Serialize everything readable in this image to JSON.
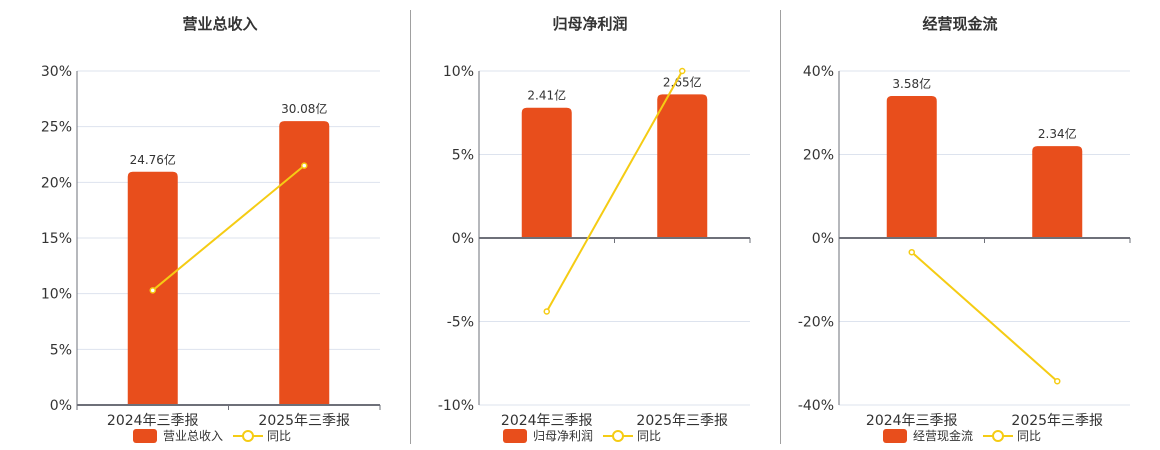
{
  "colors": {
    "bar": "#e84e1c",
    "line": "#f5cc14",
    "grid": "#dde3ee",
    "axis": "#6e7079"
  },
  "legend": {
    "yoy_label": "同比"
  },
  "chart_data": [
    {
      "type": "bar+line",
      "title": "营业总收入",
      "categories": [
        "2024年三季报",
        "2025年三季报"
      ],
      "bar_series": {
        "name": "营业总收入",
        "values": [
          24.76,
          30.08
        ],
        "labels": [
          "24.76亿",
          "30.08亿"
        ],
        "unit": "亿"
      },
      "line_series": {
        "name": "同比",
        "values": [
          10.3,
          21.5
        ],
        "unit": "%"
      },
      "yaxis": {
        "ticks": [
          "30%",
          "25%",
          "20%",
          "15%",
          "10%",
          "5%",
          "0%"
        ],
        "min": 0,
        "max": 30
      },
      "bar_display_pct": [
        20.95,
        25.5
      ],
      "grid": true,
      "legend_position": "bottom"
    },
    {
      "type": "bar+line",
      "title": "归母净利润",
      "categories": [
        "2024年三季报",
        "2025年三季报"
      ],
      "bar_series": {
        "name": "归母净利润",
        "values": [
          2.41,
          2.65
        ],
        "labels": [
          "2.41亿",
          "2.65亿"
        ],
        "unit": "亿"
      },
      "line_series": {
        "name": "同比",
        "values": [
          -4.4,
          10.0
        ],
        "unit": "%"
      },
      "yaxis": {
        "ticks": [
          "10%",
          "5%",
          "0%",
          "-5%",
          "-10%"
        ],
        "min": -10,
        "max": 10
      },
      "bar_display_pct": [
        7.8,
        8.6
      ],
      "grid": true,
      "legend_position": "bottom"
    },
    {
      "type": "bar+line",
      "title": "经营现金流",
      "categories": [
        "2024年三季报",
        "2025年三季报"
      ],
      "bar_series": {
        "name": "经营现金流",
        "values": [
          3.58,
          2.34
        ],
        "labels": [
          "3.58亿",
          "2.34亿"
        ],
        "unit": "亿"
      },
      "line_series": {
        "name": "同比",
        "values": [
          -3.4,
          -34.3
        ],
        "unit": "%"
      },
      "yaxis": {
        "ticks": [
          "40%",
          "20%",
          "0%",
          "-20%",
          "-40%"
        ],
        "min": -40,
        "max": 40
      },
      "bar_display_pct": [
        34.0,
        22.0
      ],
      "grid": true,
      "legend_position": "bottom"
    }
  ]
}
